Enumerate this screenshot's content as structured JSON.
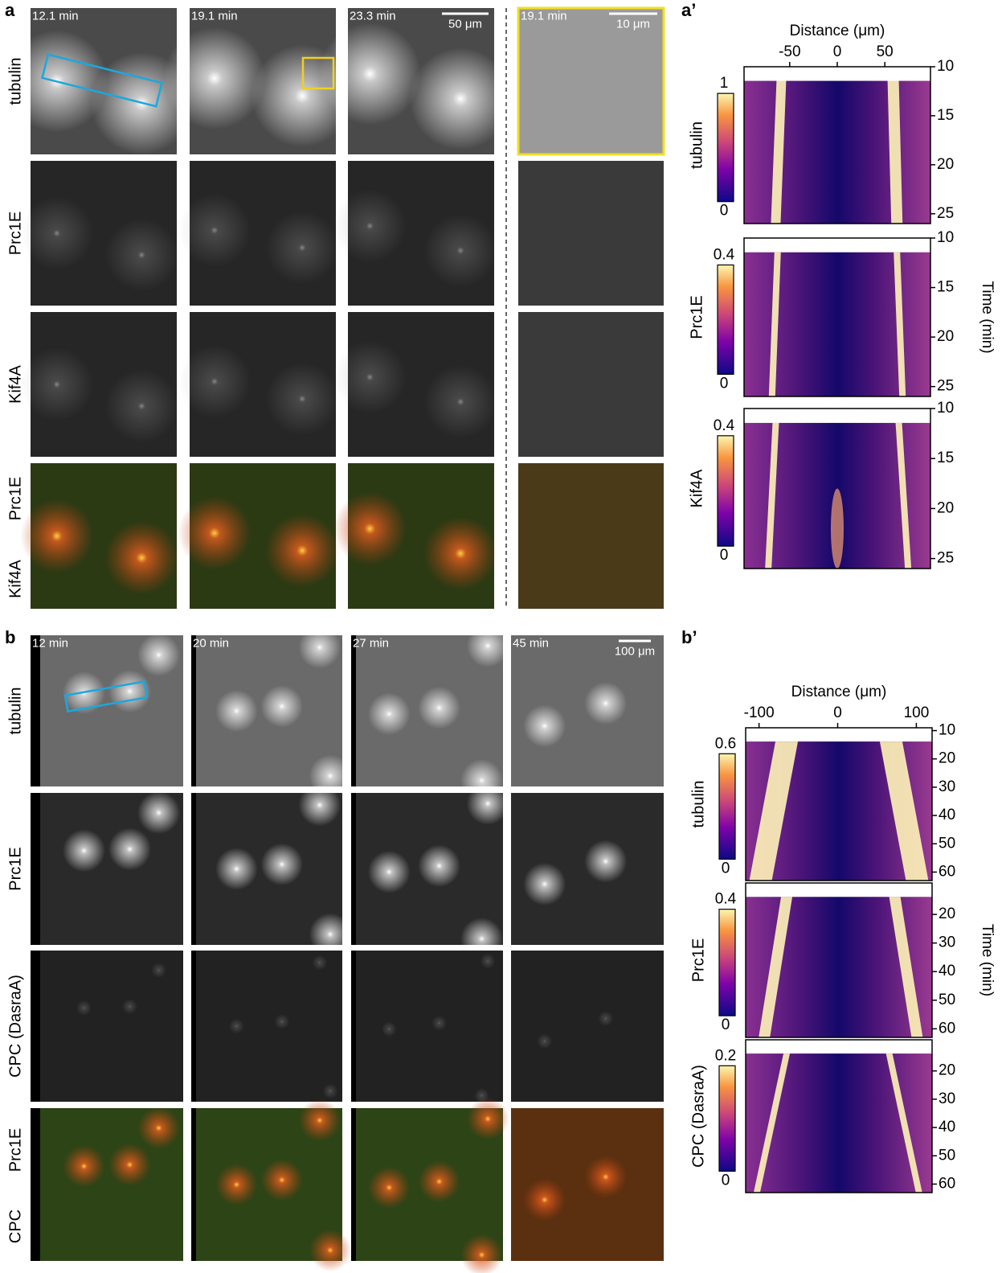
{
  "panel_a": {
    "label": "a",
    "times": [
      "12.1 min",
      "19.1 min",
      "23.3 min"
    ],
    "zoom_time": "19.1 min",
    "scale_bar": "50 μm",
    "zoom_scale_bar": "10 μm",
    "rows": [
      "tubulin",
      "Prc1E",
      "Kif4A"
    ],
    "merge_labels": [
      "Kif4A",
      "Prc1E"
    ]
  },
  "panel_a_kymo": {
    "label": "a’",
    "x_label": "Distance (μm)",
    "y_label": "Time (min)",
    "xlim": [
      -98,
      98
    ],
    "xticks": [
      -50,
      0,
      50
    ],
    "ylim": [
      10,
      26
    ],
    "plots": [
      {
        "name": "tubulin",
        "yticks": [
          10,
          15,
          20,
          25
        ],
        "colorbar_max": 1,
        "colorbar_min": 0
      },
      {
        "name": "Prc1E",
        "yticks": [
          10,
          15,
          20,
          25
        ],
        "colorbar_max": 0.4,
        "colorbar_min": 0
      },
      {
        "name": "Kif4A",
        "yticks": [
          10,
          15,
          20,
          25
        ],
        "colorbar_max": 0.4,
        "colorbar_min": 0
      }
    ]
  },
  "panel_b": {
    "label": "b",
    "times": [
      "12 min",
      "20 min",
      "27 min",
      "45 min"
    ],
    "scale_bar": "100 μm",
    "rows": [
      "tubulin",
      "Prc1E",
      "CPC (DasraA)"
    ],
    "merge_labels": [
      "CPC",
      "Prc1E"
    ]
  },
  "panel_b_kymo": {
    "label": "b’",
    "x_label": "Distance (μm)",
    "y_label": "Time (min)",
    "xlim": [
      -117,
      120
    ],
    "xticks": [
      -100,
      0,
      100
    ],
    "ylim": [
      9,
      63
    ],
    "plots": [
      {
        "name": "tubulin",
        "yticks": [
          10,
          20,
          30,
          40,
          50,
          60
        ],
        "colorbar_max": 0.6,
        "colorbar_min": 0
      },
      {
        "name": "Prc1E",
        "yticks": [
          20,
          30,
          40,
          50,
          60
        ],
        "colorbar_max": 0.4,
        "colorbar_min": 0
      },
      {
        "name": "CPC (DasraA)",
        "yticks": [
          20,
          30,
          40,
          50,
          60
        ],
        "colorbar_max": 0.2,
        "colorbar_min": 0
      }
    ]
  }
}
